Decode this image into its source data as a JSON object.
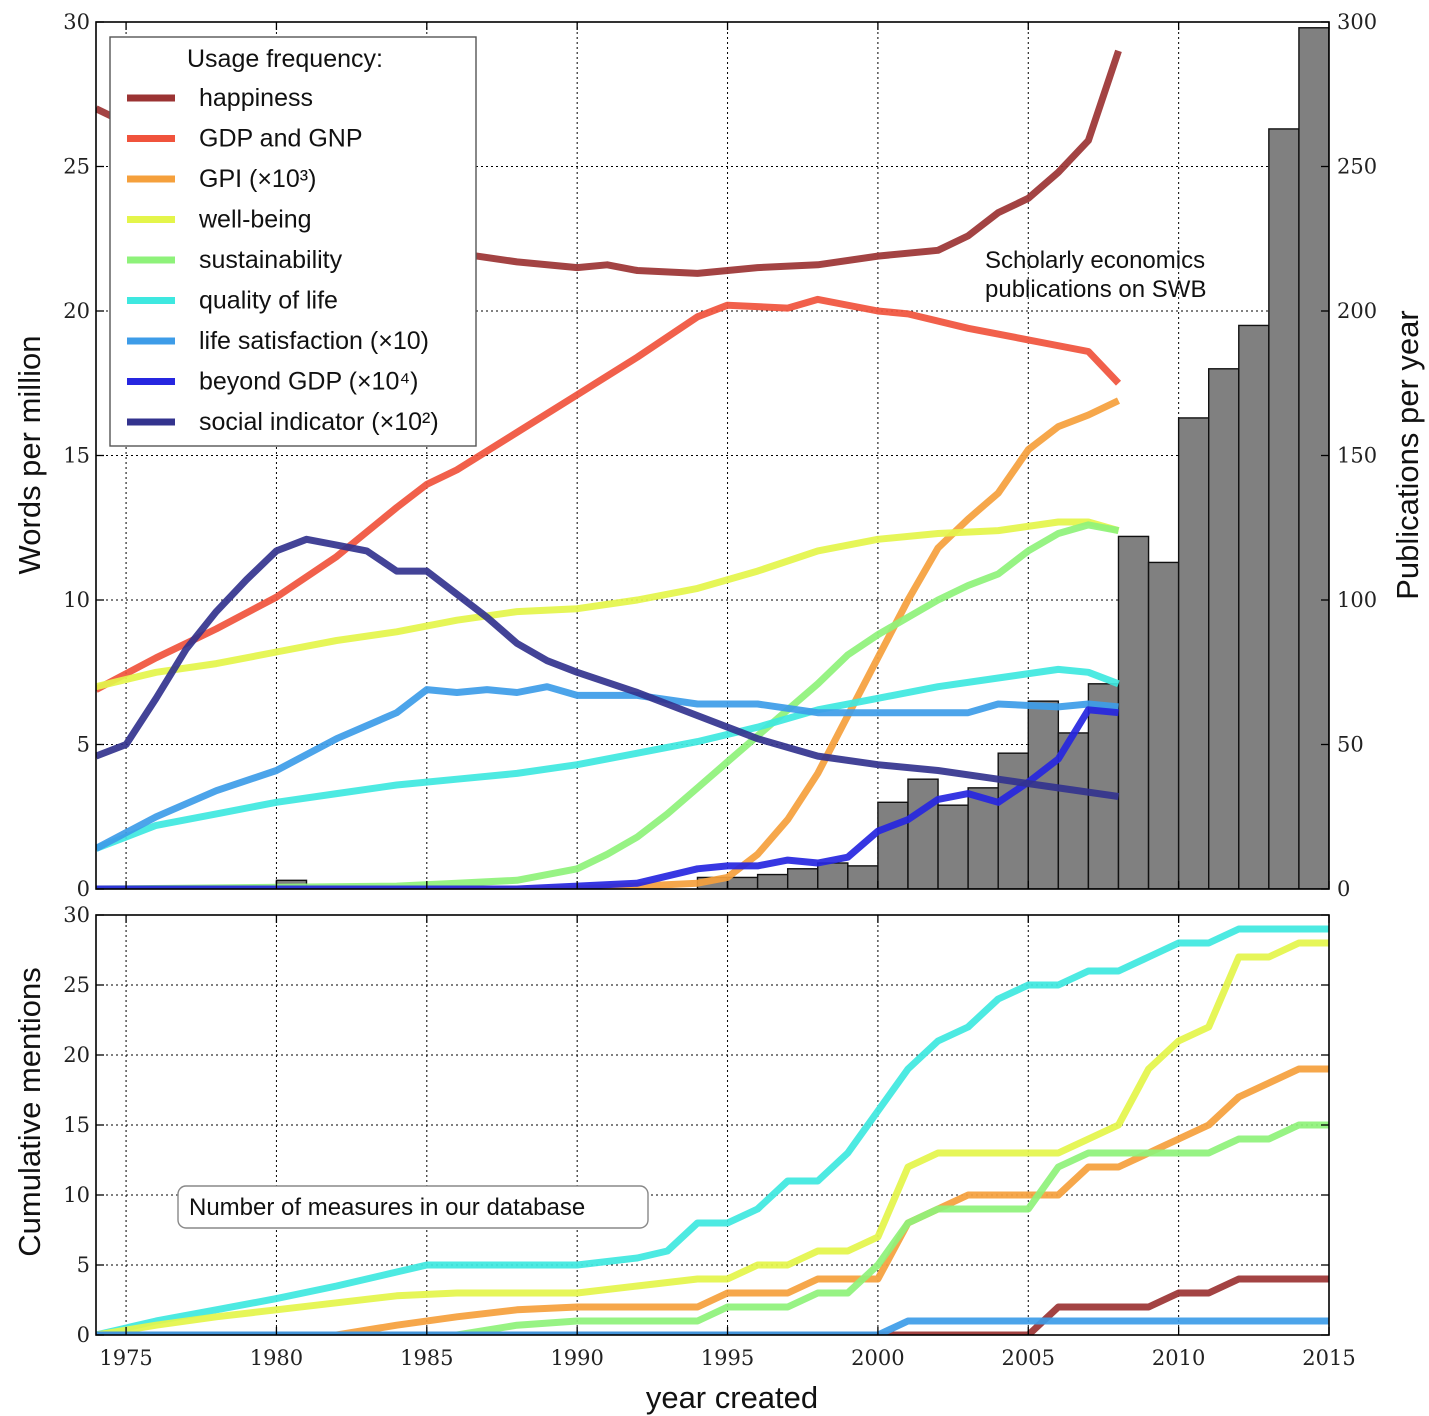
{
  "chart_data": [
    {
      "type": "line",
      "panel": "top",
      "ylabel": "Words per million",
      "ylabel_right": "Publications per year",
      "xlim": [
        1974,
        2015
      ],
      "ylim": [
        0,
        30
      ],
      "ylim_right": [
        0,
        300
      ],
      "yticks": [
        "0",
        "5",
        "10",
        "15",
        "20",
        "25",
        "30"
      ],
      "yticks_right": [
        "0",
        "50",
        "100",
        "150",
        "200",
        "250",
        "300"
      ],
      "grid": true,
      "legend_title": "Usage frequency:",
      "legend_placement": "top-left",
      "annotation": [
        "Scholarly economics",
        "publications on SWB"
      ],
      "series": [
        {
          "name": "happiness",
          "color": "#9b3333",
          "x": [
            1974,
            1976,
            1978,
            1980,
            1982,
            1984,
            1986,
            1988,
            1990,
            1991,
            1992,
            1994,
            1996,
            1998,
            2000,
            2002,
            2003,
            2004,
            2005,
            2006,
            2007,
            2008
          ],
          "y": [
            27.0,
            26.0,
            24.8,
            23.8,
            23.2,
            22.8,
            22.0,
            21.7,
            21.5,
            21.6,
            21.4,
            21.3,
            21.5,
            21.6,
            21.9,
            22.1,
            22.6,
            23.4,
            23.9,
            24.8,
            25.9,
            29.0
          ]
        },
        {
          "name": "GDP and GNP",
          "color": "#f0533c",
          "x": [
            1974,
            1976,
            1978,
            1980,
            1982,
            1984,
            1985,
            1986,
            1988,
            1990,
            1992,
            1994,
            1995,
            1997,
            1998,
            2000,
            2001,
            2003,
            2005,
            2007,
            2008
          ],
          "y": [
            6.9,
            8.0,
            9.0,
            10.1,
            11.5,
            13.2,
            14.0,
            14.5,
            15.8,
            17.1,
            18.4,
            19.8,
            20.2,
            20.1,
            20.4,
            20.0,
            19.9,
            19.4,
            19.0,
            18.6,
            17.5
          ]
        },
        {
          "name": "GPI (×10³)",
          "color": "#f5a03c",
          "x": [
            1974,
            1990,
            1992,
            1994,
            1995,
            1996,
            1997,
            1998,
            1999,
            2000,
            2001,
            2002,
            2003,
            2004,
            2005,
            2006,
            2007,
            2008
          ],
          "y": [
            0,
            0,
            0.1,
            0.2,
            0.4,
            1.2,
            2.4,
            4.0,
            6.0,
            8.0,
            10.0,
            11.8,
            12.8,
            13.7,
            15.2,
            16.0,
            16.4,
            16.9
          ]
        },
        {
          "name": "well-being",
          "color": "#e4f54a",
          "x": [
            1974,
            1976,
            1978,
            1980,
            1982,
            1984,
            1986,
            1988,
            1990,
            1992,
            1994,
            1996,
            1998,
            2000,
            2002,
            2004,
            2006,
            2007,
            2008
          ],
          "y": [
            7.0,
            7.5,
            7.8,
            8.2,
            8.6,
            8.9,
            9.3,
            9.6,
            9.7,
            10.0,
            10.4,
            11.0,
            11.7,
            12.1,
            12.3,
            12.4,
            12.7,
            12.7,
            12.4
          ]
        },
        {
          "name": "sustainability",
          "color": "#8ef27a",
          "x": [
            1974,
            1984,
            1986,
            1988,
            1990,
            1991,
            1992,
            1993,
            1994,
            1995,
            1996,
            1997,
            1998,
            1999,
            2000,
            2001,
            2002,
            2003,
            2004,
            2005,
            2006,
            2007,
            2008
          ],
          "y": [
            0,
            0.1,
            0.2,
            0.3,
            0.7,
            1.2,
            1.8,
            2.6,
            3.5,
            4.4,
            5.3,
            6.2,
            7.1,
            8.1,
            8.8,
            9.4,
            10.0,
            10.5,
            10.9,
            11.7,
            12.3,
            12.6,
            12.4
          ]
        },
        {
          "name": "quality of life",
          "color": "#3ee8e0",
          "x": [
            1974,
            1976,
            1978,
            1980,
            1982,
            1984,
            1986,
            1988,
            1990,
            1992,
            1994,
            1996,
            1998,
            2000,
            2002,
            2004,
            2006,
            2007,
            2008
          ],
          "y": [
            1.4,
            2.2,
            2.6,
            3.0,
            3.3,
            3.6,
            3.8,
            4.0,
            4.3,
            4.7,
            5.1,
            5.6,
            6.2,
            6.6,
            7.0,
            7.3,
            7.6,
            7.5,
            7.1
          ]
        },
        {
          "name": "life satisfaction (×10)",
          "color": "#3d9ce8",
          "x": [
            1974,
            1976,
            1978,
            1980,
            1982,
            1984,
            1985,
            1986,
            1987,
            1988,
            1989,
            1990,
            1992,
            1994,
            1996,
            1998,
            2000,
            2002,
            2003,
            2004,
            2006,
            2007,
            2008
          ],
          "y": [
            1.4,
            2.5,
            3.4,
            4.1,
            5.2,
            6.1,
            6.9,
            6.8,
            6.9,
            6.8,
            7.0,
            6.7,
            6.7,
            6.4,
            6.4,
            6.1,
            6.1,
            6.1,
            6.1,
            6.4,
            6.3,
            6.4,
            6.3
          ]
        },
        {
          "name": "beyond GDP (×10⁴)",
          "color": "#2626e0",
          "x": [
            1974,
            1988,
            1990,
            1992,
            1994,
            1995,
            1996,
            1997,
            1998,
            1999,
            2000,
            2001,
            2002,
            2003,
            2004,
            2005,
            2006,
            2007,
            2008
          ],
          "y": [
            0,
            0,
            0.1,
            0.2,
            0.7,
            0.8,
            0.8,
            1.0,
            0.9,
            1.1,
            2.0,
            2.4,
            3.1,
            3.3,
            3.0,
            3.7,
            4.5,
            6.2,
            6.1
          ]
        },
        {
          "name": "social indicator (×10²)",
          "color": "#33338e",
          "x": [
            1974,
            1975,
            1976,
            1977,
            1978,
            1979,
            1980,
            1981,
            1982,
            1983,
            1984,
            1985,
            1986,
            1987,
            1988,
            1989,
            1990,
            1992,
            1994,
            1996,
            1998,
            2000,
            2002,
            2004,
            2006,
            2008
          ],
          "y": [
            4.6,
            5.0,
            6.6,
            8.3,
            9.6,
            10.7,
            11.7,
            12.1,
            11.9,
            11.7,
            11.0,
            11.0,
            10.2,
            9.4,
            8.5,
            7.9,
            7.5,
            6.8,
            6.0,
            5.2,
            4.6,
            4.3,
            4.1,
            3.8,
            3.5,
            3.2
          ]
        }
      ],
      "bars": {
        "name": "Scholarly economics publications on SWB",
        "color": "#808080",
        "x": [
          1980,
          1994,
          1995,
          1996,
          1997,
          1998,
          1999,
          2000,
          2001,
          2002,
          2003,
          2004,
          2005,
          2006,
          2007,
          2008,
          2009,
          2010,
          2011,
          2012,
          2013,
          2014
        ],
        "values": [
          3,
          4,
          4,
          5,
          7,
          9,
          8,
          30,
          38,
          29,
          35,
          47,
          65,
          54,
          71,
          122,
          113,
          163,
          180,
          195,
          263,
          298
        ]
      }
    },
    {
      "type": "line",
      "panel": "bottom",
      "xlabel": "year created",
      "ylabel": "Cumulative mentions",
      "xlim": [
        1974,
        2015
      ],
      "ylim": [
        0,
        30
      ],
      "xticks": [
        "1975",
        "1980",
        "1985",
        "1990",
        "1995",
        "2000",
        "2005",
        "2010",
        "2015"
      ],
      "yticks": [
        "0",
        "5",
        "10",
        "15",
        "20",
        "25",
        "30"
      ],
      "grid": true,
      "annotation": "Number of measures in our database",
      "series": [
        {
          "color": "#3ee8e0",
          "x": [
            1974,
            1976,
            1978,
            1980,
            1982,
            1984,
            1985,
            1986,
            1988,
            1990,
            1992,
            1993,
            1994,
            1995,
            1996,
            1997,
            1998,
            1999,
            2000,
            2001,
            2002,
            2003,
            2004,
            2005,
            2006,
            2007,
            2008,
            2009,
            2010,
            2011,
            2012,
            2013,
            2014,
            2015
          ],
          "y": [
            0,
            1,
            1.8,
            2.6,
            3.5,
            4.5,
            5,
            5,
            5,
            5,
            5.5,
            6,
            8,
            8,
            9,
            11,
            11,
            13,
            16,
            19,
            21,
            22,
            24,
            25,
            25,
            26,
            26,
            27,
            28,
            28,
            29,
            29,
            29,
            29
          ]
        },
        {
          "color": "#e4f54a",
          "x": [
            1974,
            1976,
            1978,
            1980,
            1982,
            1984,
            1986,
            1988,
            1990,
            1992,
            1994,
            1995,
            1996,
            1997,
            1998,
            1999,
            2000,
            2001,
            2002,
            2003,
            2004,
            2005,
            2006,
            2007,
            2008,
            2009,
            2010,
            2011,
            2012,
            2013,
            2014,
            2015
          ],
          "y": [
            0,
            0.7,
            1.3,
            1.8,
            2.3,
            2.8,
            3,
            3,
            3,
            3.5,
            4,
            4,
            5,
            5,
            6,
            6,
            7,
            12,
            13,
            13,
            13,
            13,
            13,
            14,
            15,
            19,
            21,
            22,
            27,
            27,
            28,
            28
          ]
        },
        {
          "color": "#f5a03c",
          "x": [
            1974,
            1982,
            1984,
            1986,
            1988,
            1990,
            1992,
            1994,
            1995,
            1997,
            1998,
            2000,
            2001,
            2002,
            2003,
            2004,
            2005,
            2006,
            2007,
            2008,
            2009,
            2010,
            2011,
            2012,
            2013,
            2014,
            2015
          ],
          "y": [
            0,
            0,
            0.7,
            1.3,
            1.8,
            2,
            2,
            2,
            3,
            3,
            4,
            4,
            8,
            9,
            10,
            10,
            10,
            10,
            12,
            12,
            13,
            14,
            15,
            17,
            18,
            19,
            19
          ]
        },
        {
          "color": "#8ef27a",
          "x": [
            1974,
            1986,
            1988,
            1990,
            1992,
            1994,
            1995,
            1997,
            1998,
            1999,
            2000,
            2001,
            2002,
            2003,
            2004,
            2005,
            2006,
            2007,
            2008,
            2009,
            2010,
            2011,
            2012,
            2013,
            2014,
            2015
          ],
          "y": [
            0,
            0,
            0.7,
            1,
            1,
            1,
            2,
            2,
            3,
            3,
            5,
            8,
            9,
            9,
            9,
            9,
            12,
            13,
            13,
            13,
            13,
            13,
            14,
            14,
            15,
            15
          ]
        },
        {
          "color": "#9b3333",
          "x": [
            1974,
            2005,
            2006,
            2009,
            2010,
            2011,
            2012,
            2015
          ],
          "y": [
            0,
            0,
            2,
            2,
            3,
            3,
            4,
            4
          ]
        },
        {
          "color": "#3d9ce8",
          "x": [
            1974,
            2000,
            2001,
            2015
          ],
          "y": [
            0,
            0,
            1,
            1
          ]
        }
      ]
    }
  ]
}
